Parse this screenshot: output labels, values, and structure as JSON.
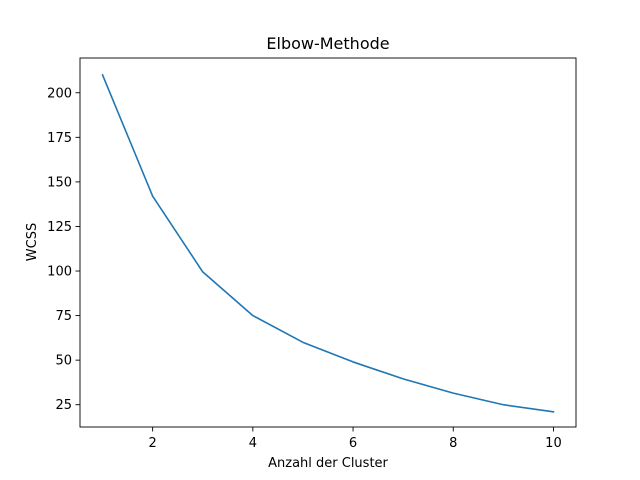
{
  "chart_data": {
    "type": "line",
    "title": "Elbow-Methode",
    "xlabel": "Anzahl der Cluster",
    "ylabel": "WCSS",
    "x": [
      1,
      2,
      3,
      4,
      5,
      6,
      7,
      8,
      9,
      10
    ],
    "series": [
      {
        "values": [
          210,
          142,
          99.5,
          75,
          60,
          49,
          39.5,
          31.5,
          25,
          21
        ],
        "color": "#1f77b4"
      }
    ],
    "xlim": [
      0.55,
      10.45
    ],
    "ylim": [
      12.5,
      219.5
    ],
    "xticks": [
      2,
      4,
      6,
      8,
      10
    ],
    "yticks": [
      25,
      50,
      75,
      100,
      125,
      150,
      175,
      200
    ],
    "grid": false,
    "legend": "none"
  }
}
